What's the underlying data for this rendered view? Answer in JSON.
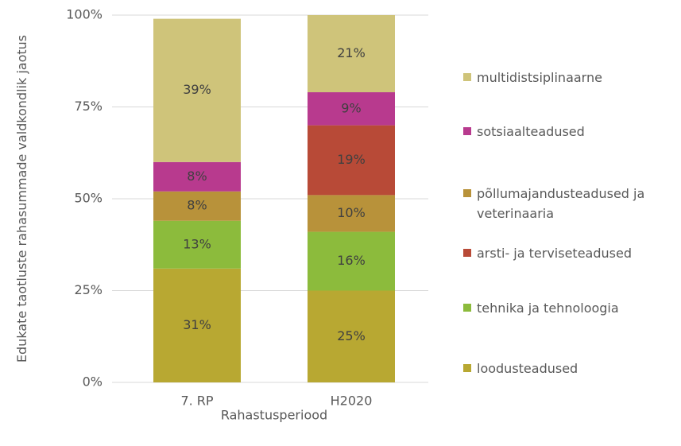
{
  "chart_data": {
    "type": "stacked_bar",
    "x_label": "Rahastusperiood",
    "y_label": "Edukate taotluste rahasummade valdkondlik jaotus",
    "categories": [
      "7. RP",
      "H2020"
    ],
    "series": [
      {
        "name": "loodusteadused",
        "color": "#b8a832",
        "values": [
          31,
          25
        ],
        "value_labels": [
          "31%",
          "25%"
        ]
      },
      {
        "name": "tehnika ja tehnoloogia",
        "color": "#8cbb3c",
        "values": [
          13,
          16
        ],
        "value_labels": [
          "13%",
          "16%"
        ]
      },
      {
        "name": "põllumajandusteadused ja veterinaaria",
        "color": "#b8923a",
        "values": [
          8,
          10
        ],
        "value_labels": [
          "8%",
          "10%"
        ]
      },
      {
        "name": "arsti- ja terviseteadused",
        "color": "#b84a37",
        "values": [
          null,
          19
        ],
        "value_labels": [
          null,
          "19%"
        ]
      },
      {
        "name": "sotsiaalteadused",
        "color": "#b83a8e",
        "values": [
          8,
          9
        ],
        "value_labels": [
          "8%",
          "9%"
        ]
      },
      {
        "name": "multidistsiplinaarne",
        "color": "#cfc47a",
        "values": [
          39,
          21
        ],
        "value_labels": [
          "39%",
          "21%"
        ]
      }
    ],
    "ylim": [
      0,
      100
    ],
    "yticks": [
      {
        "value": 0,
        "label": "0%"
      },
      {
        "value": 25,
        "label": "25%"
      },
      {
        "value": 50,
        "label": "50%"
      },
      {
        "value": 75,
        "label": "75%"
      },
      {
        "value": 100,
        "label": "100%"
      }
    ],
    "grid": true,
    "legend": "right"
  }
}
